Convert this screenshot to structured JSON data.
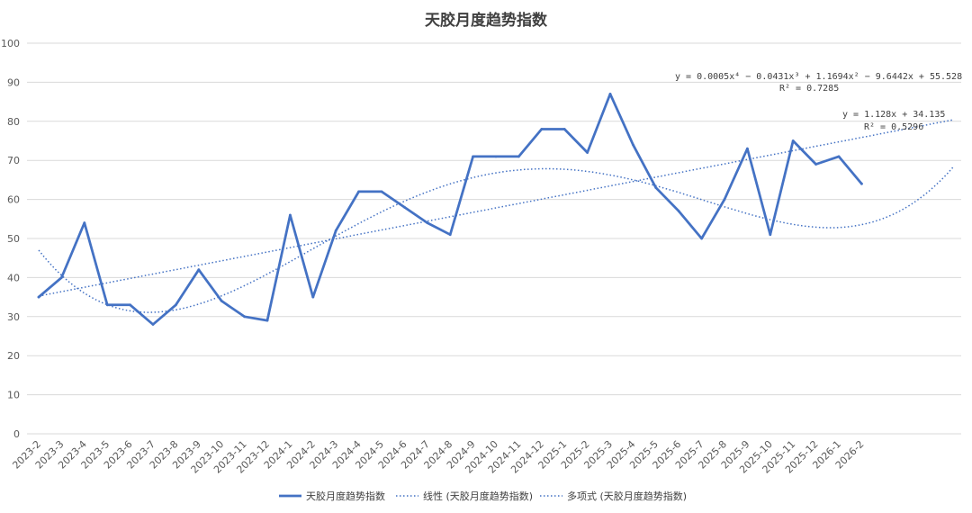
{
  "chart_data": {
    "type": "line",
    "title": "天胶月度趋势指数",
    "xlabel": "",
    "ylabel": "",
    "ylim": [
      0,
      100
    ],
    "yticks": [
      0,
      10,
      20,
      30,
      40,
      50,
      60,
      70,
      80,
      90,
      100
    ],
    "grid": true,
    "legend_position": "bottom",
    "categories": [
      "2023-2",
      "2023-3",
      "2023-4",
      "2023-5",
      "2023-6",
      "2023-7",
      "2023-8",
      "2023-9",
      "2023-10",
      "2023-11",
      "2023-12",
      "2024-1",
      "2024-2",
      "2024-3",
      "2024-4",
      "2024-5",
      "2024-6",
      "2024-7",
      "2024-8",
      "2024-9",
      "2024-10",
      "2024-11",
      "2024-12",
      "2025-1",
      "2025-2",
      "2025-3",
      "2025-4",
      "2025-5",
      "2025-6",
      "2025-7",
      "2025-8",
      "2025-9",
      "2025-10",
      "2025-11",
      "2025-12",
      "2026-1",
      "2026-2"
    ],
    "series": [
      {
        "name": "天胶月度趋势指数",
        "color": "#4472C4",
        "values": [
          35,
          40,
          54,
          33,
          33,
          28,
          33,
          42,
          34,
          30,
          29,
          56,
          35,
          52,
          62,
          62,
          58,
          54,
          51,
          71,
          71,
          71,
          78,
          78,
          72,
          87,
          74,
          63,
          57,
          50,
          60,
          73,
          51,
          75,
          69,
          71,
          64
        ]
      }
    ],
    "trendlines": [
      {
        "name": "线性 (天胶月度趋势指数)",
        "kind": "linear",
        "equation": "y = 1.128x + 34.135",
        "r_squared": "R² = 0.5296",
        "coefficients": [
          34.135,
          1.128
        ],
        "x_range": [
          1,
          41
        ],
        "color": "#4472C4"
      },
      {
        "name": "多项式 (天胶月度趋势指数)",
        "kind": "polynomial",
        "equation": "y = 0.0005x⁴ − 0.0431x³ + 1.1694x² − 9.6442x + 55.528",
        "r_squared": "R² = 0.7285",
        "coefficients": [
          55.528,
          -9.6442,
          1.1694,
          -0.0431,
          0.0005
        ],
        "x_range": [
          1,
          41
        ],
        "color": "#4472C4"
      }
    ]
  }
}
